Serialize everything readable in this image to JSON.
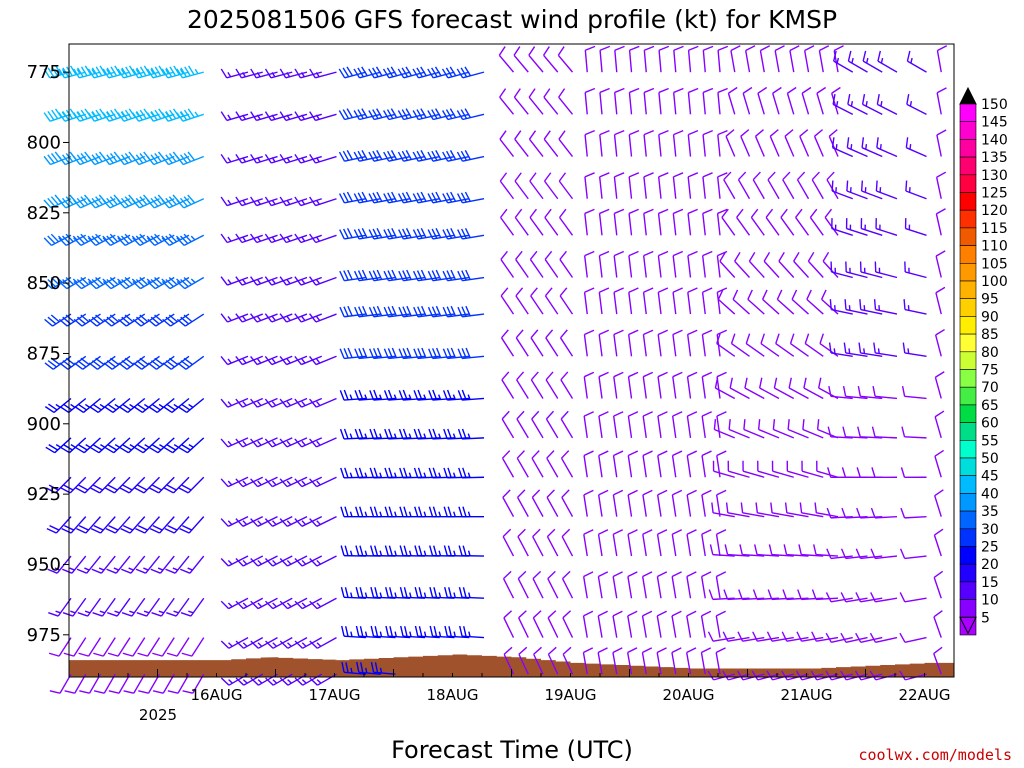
{
  "chart_data": {
    "type": "wind-barb-profile",
    "title": "2025081506 GFS forecast wind profile (kt) for KMSP",
    "xlabel": "Forecast Time (UTC)",
    "ylabel": "",
    "x_ticks": [
      "16AUG",
      "17AUG",
      "18AUG",
      "19AUG",
      "20AUG",
      "21AUG",
      "22AUG"
    ],
    "x_tick_sub": "2025",
    "y_ticks": [
      775,
      800,
      825,
      850,
      875,
      900,
      925,
      950,
      975
    ],
    "y_range_hpa": [
      765,
      990
    ],
    "x_range_days": [
      15.25,
      22.75
    ],
    "levels_hpa": [
      775,
      790,
      805,
      820,
      833,
      848,
      861,
      876,
      891,
      905,
      919,
      933,
      947,
      962,
      976,
      989
    ],
    "times_days": [
      15.25,
      15.375,
      15.5,
      15.625,
      15.75,
      15.875,
      16.0,
      16.125,
      16.25,
      16.375,
      16.5,
      16.75,
      16.875,
      17.0,
      17.125,
      17.25,
      17.375,
      17.5,
      17.75,
      17.875,
      18.0,
      18.125,
      18.25,
      18.375,
      18.5,
      18.625,
      18.75,
      18.875,
      19.0,
      19.125,
      19.25,
      19.375,
      19.5,
      19.625,
      19.75,
      19.875,
      20.0,
      20.125,
      20.25,
      20.375,
      20.5,
      20.625,
      20.75,
      20.875,
      21.0,
      21.125,
      21.25,
      21.375,
      21.5,
      21.625,
      21.75,
      21.875,
      22.0,
      22.125,
      22.25,
      22.5,
      22.625,
      22.75
    ],
    "wind_regimes": [
      {
        "from_day": 15.25,
        "to_day": 16.45,
        "dir_low_deg": 210,
        "dir_high_deg": 255,
        "speed_low_kt": 10,
        "speed_high_kt": 45
      },
      {
        "from_day": 16.75,
        "to_day": 17.5,
        "dir_low_deg": 240,
        "dir_high_deg": 255,
        "speed_low_kt": 15,
        "speed_high_kt": 15
      },
      {
        "from_day": 17.75,
        "to_day": 18.75,
        "dir_low_deg": 275,
        "dir_high_deg": 255,
        "speed_low_kt": 25,
        "speed_high_kt": 30
      },
      {
        "from_day": 19.0,
        "to_day": 19.5,
        "dir_low_deg": 335,
        "dir_high_deg": 320,
        "speed_low_kt": 10,
        "speed_high_kt": 10
      },
      {
        "from_day": 19.5,
        "to_day": 20.75,
        "dir_low_deg": 350,
        "dir_high_deg": 355,
        "speed_low_kt": 10,
        "speed_high_kt": 10
      },
      {
        "from_day": 20.75,
        "to_day": 21.75,
        "dir_low_deg": 255,
        "dir_high_deg": 350,
        "speed_low_kt": 10,
        "speed_high_kt": 10
      },
      {
        "from_day": 21.75,
        "to_day": 22.5,
        "dir_low_deg": 255,
        "dir_high_deg": 300,
        "speed_low_kt": 10,
        "speed_high_kt": 15
      },
      {
        "from_day": 22.5,
        "to_day": 22.75,
        "dir_low_deg": 340,
        "dir_high_deg": 350,
        "speed_low_kt": 10,
        "speed_high_kt": 10
      }
    ],
    "surface_pressure_hpa": [
      {
        "day": 15.25,
        "p": 984
      },
      {
        "day": 16.0,
        "p": 984
      },
      {
        "day": 16.5,
        "p": 984
      },
      {
        "day": 16.9,
        "p": 983
      },
      {
        "day": 17.5,
        "p": 984
      },
      {
        "day": 18.0,
        "p": 983
      },
      {
        "day": 18.5,
        "p": 982
      },
      {
        "day": 19.0,
        "p": 983
      },
      {
        "day": 19.5,
        "p": 985
      },
      {
        "day": 20.0,
        "p": 986
      },
      {
        "day": 20.5,
        "p": 987
      },
      {
        "day": 21.0,
        "p": 987
      },
      {
        "day": 21.5,
        "p": 987
      },
      {
        "day": 22.0,
        "p": 986
      },
      {
        "day": 22.5,
        "p": 985
      },
      {
        "day": 22.75,
        "p": 985
      }
    ],
    "legend": {
      "placement": "right",
      "labels": [
        "150",
        "145",
        "140",
        "135",
        "130",
        "125",
        "120",
        "115",
        "110",
        "105",
        "100",
        "95",
        "90",
        "85",
        "80",
        "75",
        "70",
        "65",
        "60",
        "55",
        "50",
        "45",
        "40",
        "35",
        "30",
        "25",
        "20",
        "15",
        "10",
        "5"
      ],
      "colors": [
        "#000000",
        "#ff00ff",
        "#ff00d0",
        "#ff00a0",
        "#ff0070",
        "#ff0040",
        "#ff0000",
        "#ff3000",
        "#f05a00",
        "#ff7f00",
        "#ff9900",
        "#ffb300",
        "#ffd000",
        "#ffee00",
        "#ffff33",
        "#ccff33",
        "#88ff44",
        "#44ee44",
        "#00dd44",
        "#00dd88",
        "#00ffcc",
        "#00dddd",
        "#00bbff",
        "#0099ff",
        "#0066ff",
        "#0033ff",
        "#0000ff",
        "#2200ff",
        "#5500ff",
        "#8800ff",
        "#aa00ff"
      ]
    },
    "ground_color": "#a0522d"
  },
  "credit": "coolwx.com/models"
}
